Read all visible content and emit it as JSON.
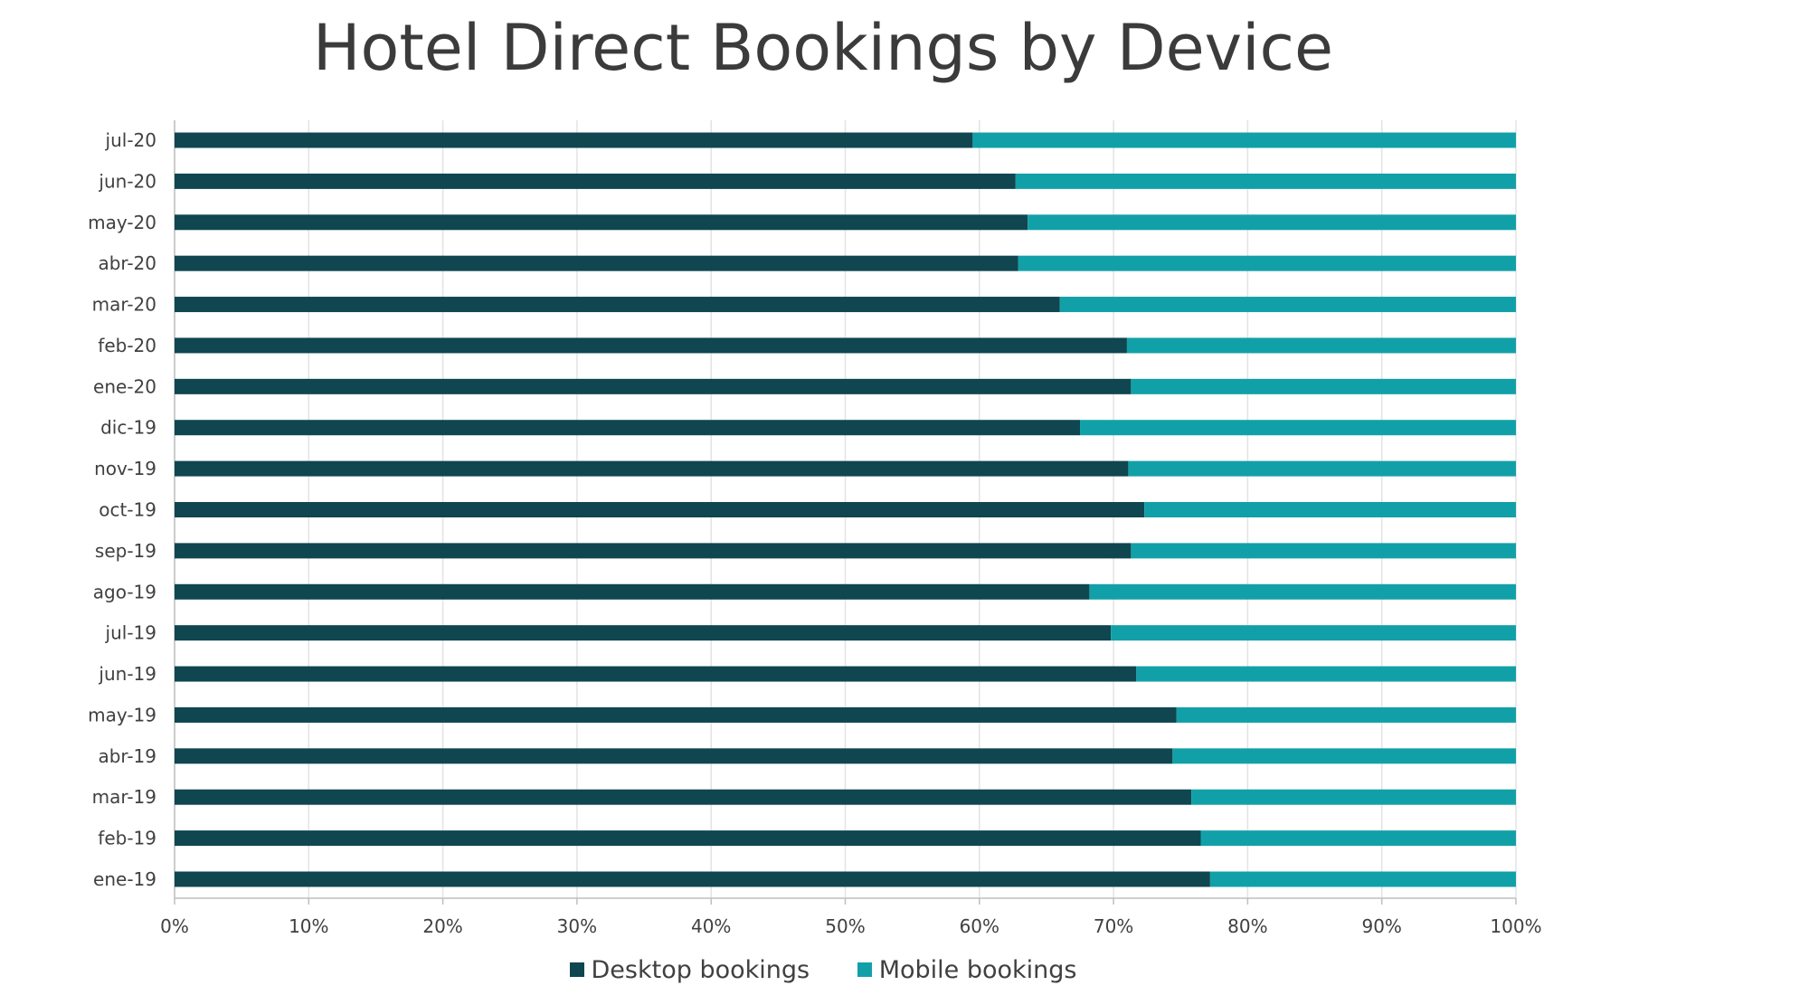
{
  "chart_data": {
    "type": "bar",
    "orientation": "horizontal",
    "stacked": true,
    "title": "Hotel Direct Bookings by Device",
    "categories": [
      "ene-19",
      "feb-19",
      "mar-19",
      "abr-19",
      "may-19",
      "jun-19",
      "jul-19",
      "ago-19",
      "sep-19",
      "oct-19",
      "nov-19",
      "dic-19",
      "ene-20",
      "feb-20",
      "mar-20",
      "abr-20",
      "may-20",
      "jun-20",
      "jul-20"
    ],
    "series": [
      {
        "name": "Desktop bookings",
        "color": "#0f4650",
        "values": [
          77.2,
          76.5,
          75.8,
          74.4,
          74.7,
          71.7,
          69.8,
          68.2,
          71.3,
          72.3,
          71.1,
          67.5,
          71.3,
          71.0,
          66.0,
          62.9,
          63.6,
          62.7,
          59.5
        ]
      },
      {
        "name": "Mobile bookings",
        "color": "#12a0a8",
        "values": [
          22.8,
          23.5,
          24.2,
          25.6,
          25.3,
          28.3,
          30.2,
          31.8,
          28.7,
          27.7,
          28.9,
          32.5,
          28.7,
          29.0,
          34.0,
          37.1,
          36.4,
          37.3,
          40.5
        ]
      }
    ],
    "x_ticks": [
      "0%",
      "10%",
      "20%",
      "30%",
      "40%",
      "50%",
      "60%",
      "70%",
      "80%",
      "90%",
      "100%"
    ],
    "xlim": [
      0,
      100
    ],
    "grid": true,
    "legend_position": "bottom"
  }
}
